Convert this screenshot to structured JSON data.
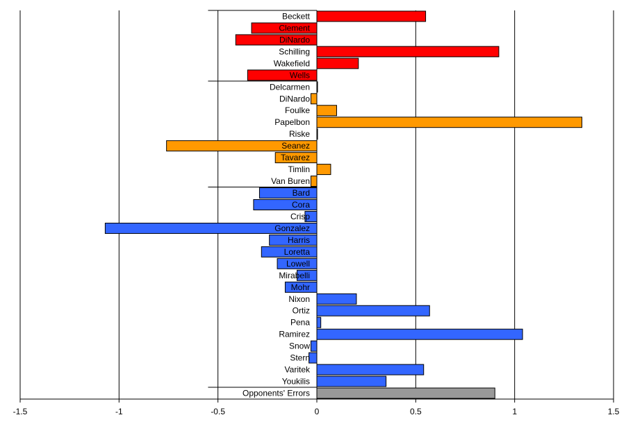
{
  "chart_data": {
    "type": "bar",
    "orientation": "horizontal",
    "xlim": [
      -1.5,
      1.5
    ],
    "x_ticks": [
      -1.5,
      -1,
      -0.5,
      0,
      0.5,
      1,
      1.5
    ],
    "x_tick_labels": [
      "-1.5",
      "-1",
      "-0.5",
      "0",
      "0.5",
      "1",
      "1.5"
    ],
    "grid": "vertical gridlines at each major tick",
    "groups": [
      {
        "color": "#ff0000",
        "categories": [
          "Beckett",
          "Clement",
          "DiNardo",
          "Schilling",
          "Wakefield",
          "Wells"
        ],
        "values": [
          0.55,
          -0.33,
          -0.41,
          0.92,
          0.21,
          -0.35
        ]
      },
      {
        "color": "#ff9900",
        "categories": [
          "Delcarmen",
          "DiNardo",
          "Foulke",
          "Papelbon",
          "Riske",
          "Seanez",
          "Tavarez",
          "Timlin",
          "Van Buren"
        ],
        "values": [
          0.0,
          -0.03,
          0.1,
          1.34,
          0.0,
          -0.76,
          -0.21,
          0.07,
          -0.03
        ]
      },
      {
        "color": "#3366ff",
        "categories": [
          "Bard",
          "Cora",
          "Crisp",
          "Gonzalez",
          "Harris",
          "Loretta",
          "Lowell",
          "Mirabelli",
          "Mohr",
          "Nixon",
          "Ortiz",
          "Pena",
          "Ramirez",
          "Snow",
          "Stern",
          "Varitek",
          "Youkilis"
        ],
        "values": [
          -0.29,
          -0.32,
          -0.06,
          -1.07,
          -0.24,
          -0.28,
          -0.2,
          -0.1,
          -0.16,
          0.2,
          0.57,
          0.02,
          1.04,
          -0.03,
          -0.04,
          0.54,
          0.35
        ]
      },
      {
        "color": "#999999",
        "categories": [
          "Opponents' Errors"
        ],
        "values": [
          0.9
        ]
      }
    ]
  }
}
